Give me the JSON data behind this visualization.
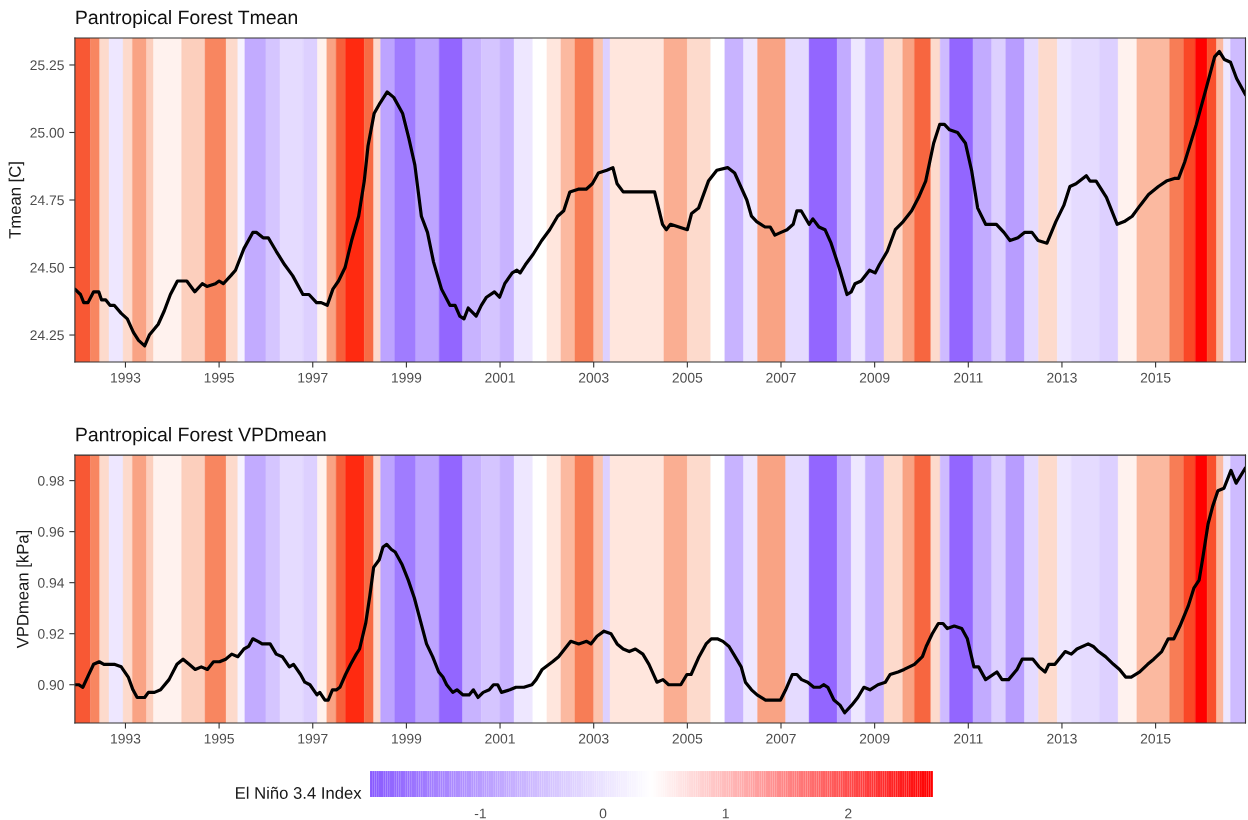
{
  "chart_data": [
    {
      "type": "line",
      "title": "Pantropical Forest Tmean",
      "ylabel": "Tmean [C]",
      "grid": false,
      "xlim": [
        1991.92,
        2016.92
      ],
      "xticks": [
        1993,
        1995,
        1997,
        1999,
        2001,
        2003,
        2005,
        2007,
        2009,
        2011,
        2013,
        2015
      ],
      "ylim": [
        24.15,
        25.35
      ],
      "yticks": [
        24.25,
        {
          "value": 24.5,
          "label": "24.50"
        },
        24.75,
        {
          "value": 25.0,
          "label": "25.00"
        },
        25.25
      ],
      "series": [
        {
          "color": "#000000",
          "x": [
            1991.92,
            1992.04,
            1992.11,
            1992.2,
            1992.32,
            1992.43,
            1992.49,
            1992.58,
            1992.67,
            1992.76,
            1992.91,
            1993.04,
            1993.17,
            1993.28,
            1993.41,
            1993.51,
            1993.7,
            1993.83,
            1993.96,
            1994.11,
            1994.31,
            1994.48,
            1994.64,
            1994.74,
            1994.92,
            1995.0,
            1995.09,
            1995.25,
            1995.35,
            1995.53,
            1995.72,
            1995.8,
            1995.94,
            1996.05,
            1996.22,
            1996.4,
            1996.57,
            1996.79,
            1996.92,
            1997.08,
            1997.18,
            1997.31,
            1997.43,
            1997.55,
            1997.69,
            1997.83,
            1997.98,
            1998.1,
            1998.18,
            1998.31,
            1998.44,
            1998.59,
            1998.73,
            1998.92,
            1999.05,
            1999.18,
            1999.32,
            1999.45,
            1999.58,
            1999.75,
            1999.93,
            2000.04,
            2000.14,
            2000.23,
            2000.32,
            2000.49,
            2000.6,
            2000.71,
            2000.88,
            2000.99,
            2001.1,
            2001.26,
            2001.36,
            2001.43,
            2001.54,
            2001.71,
            2001.89,
            2002.06,
            2002.23,
            2002.36,
            2002.49,
            2002.67,
            2002.84,
            2002.97,
            2003.1,
            2003.28,
            2003.41,
            2003.5,
            2003.63,
            2003.85,
            2004.0,
            2004.3,
            2004.47,
            2004.55,
            2004.64,
            2005.0,
            2005.09,
            2005.24,
            2005.45,
            2005.63,
            2005.86,
            2006.01,
            2006.14,
            2006.27,
            2006.37,
            2006.48,
            2006.66,
            2006.77,
            2006.87,
            2007.0,
            2007.13,
            2007.26,
            2007.34,
            2007.43,
            2007.6,
            2007.68,
            2007.81,
            2007.94,
            2008.07,
            2008.24,
            2008.41,
            2008.5,
            2008.58,
            2008.71,
            2008.89,
            2009.01,
            2009.1,
            2009.27,
            2009.44,
            2009.61,
            2009.79,
            2009.94,
            2010.09,
            2010.26,
            2010.39,
            2010.49,
            2010.6,
            2010.77,
            2010.94,
            2011.07,
            2011.2,
            2011.37,
            2011.6,
            2011.76,
            2011.89,
            2012.06,
            2012.2,
            2012.36,
            2012.49,
            2012.68,
            2012.87,
            2013.04,
            2013.17,
            2013.3,
            2013.52,
            2013.6,
            2013.73,
            2013.95,
            2014.18,
            2014.33,
            2014.5,
            2014.67,
            2014.85,
            2015.06,
            2015.23,
            2015.4,
            2015.49,
            2015.62,
            2015.87,
            2016.09,
            2016.26,
            2016.36,
            2016.47,
            2016.6,
            2016.73,
            2016.92
          ],
          "values": [
            24.42,
            24.4,
            24.37,
            24.37,
            24.41,
            24.41,
            24.38,
            24.38,
            24.36,
            24.36,
            24.33,
            24.31,
            24.26,
            24.23,
            24.21,
            24.25,
            24.29,
            24.34,
            24.4,
            24.45,
            24.45,
            24.41,
            24.44,
            24.43,
            24.44,
            24.45,
            24.44,
            24.47,
            24.49,
            24.57,
            24.63,
            24.63,
            24.61,
            24.61,
            24.56,
            24.51,
            24.47,
            24.4,
            24.4,
            24.37,
            24.37,
            24.36,
            24.42,
            24.45,
            24.5,
            24.6,
            24.69,
            24.82,
            24.95,
            25.07,
            25.11,
            25.15,
            25.13,
            25.07,
            24.98,
            24.88,
            24.69,
            24.63,
            24.52,
            24.42,
            24.36,
            24.36,
            24.32,
            24.31,
            24.35,
            24.32,
            24.36,
            24.39,
            24.41,
            24.39,
            24.44,
            24.48,
            24.49,
            24.48,
            24.51,
            24.55,
            24.6,
            24.64,
            24.69,
            24.71,
            24.78,
            24.79,
            24.79,
            24.81,
            24.85,
            24.86,
            24.87,
            24.81,
            24.78,
            24.78,
            24.78,
            24.78,
            24.66,
            24.64,
            24.66,
            24.64,
            24.7,
            24.72,
            24.82,
            24.86,
            24.87,
            24.85,
            24.8,
            24.75,
            24.69,
            24.67,
            24.65,
            24.65,
            24.62,
            24.63,
            24.64,
            24.66,
            24.71,
            24.71,
            24.66,
            24.68,
            24.65,
            24.64,
            24.59,
            24.5,
            24.4,
            24.41,
            24.44,
            24.45,
            24.49,
            24.48,
            24.51,
            24.56,
            24.64,
            24.67,
            24.71,
            24.76,
            24.82,
            24.96,
            25.03,
            25.03,
            25.01,
            25.0,
            24.96,
            24.86,
            24.72,
            24.66,
            24.66,
            24.63,
            24.6,
            24.61,
            24.63,
            24.63,
            24.6,
            24.59,
            24.67,
            24.73,
            24.8,
            24.81,
            24.84,
            24.82,
            24.82,
            24.76,
            24.66,
            24.67,
            24.69,
            24.73,
            24.77,
            24.8,
            24.82,
            24.83,
            24.83,
            24.89,
            25.03,
            25.17,
            25.28,
            25.3,
            25.27,
            25.26,
            25.2,
            25.14
          ]
        }
      ],
      "bands": [
        {
          "axis": "x",
          "from": 1991.92,
          "to": 1992.25,
          "color": "#f85834"
        },
        {
          "axis": "x",
          "from": 1992.25,
          "to": 1992.45,
          "color": "#f88660"
        },
        {
          "axis": "x",
          "from": 1992.45,
          "to": 1992.65,
          "color": "#fddacc"
        },
        {
          "axis": "x",
          "from": 1992.65,
          "to": 1992.95,
          "color": "#eee7ff"
        },
        {
          "axis": "x",
          "from": 1992.95,
          "to": 1993.15,
          "color": "#fddacc"
        },
        {
          "axis": "x",
          "from": 1993.15,
          "to": 1993.45,
          "color": "#f9a384"
        },
        {
          "axis": "x",
          "from": 1993.45,
          "to": 1993.6,
          "color": "#fccfbd"
        },
        {
          "axis": "x",
          "from": 1993.6,
          "to": 1994.2,
          "color": "#fff2ee"
        },
        {
          "axis": "x",
          "from": 1994.2,
          "to": 1994.7,
          "color": "#fccfbd"
        },
        {
          "axis": "x",
          "from": 1994.7,
          "to": 1995.15,
          "color": "#f88660"
        },
        {
          "axis": "x",
          "from": 1995.15,
          "to": 1995.4,
          "color": "#fddacc"
        },
        {
          "axis": "x",
          "from": 1995.4,
          "to": 1995.55,
          "color": "#f7f3ff"
        },
        {
          "axis": "x",
          "from": 1995.55,
          "to": 1996.0,
          "color": "#c2abff"
        },
        {
          "axis": "x",
          "from": 1996.0,
          "to": 1996.3,
          "color": "#d5c5ff"
        },
        {
          "axis": "x",
          "from": 1996.3,
          "to": 1996.8,
          "color": "#e5dbff"
        },
        {
          "axis": "x",
          "from": 1996.8,
          "to": 1997.1,
          "color": "#ddd0ff"
        },
        {
          "axis": "x",
          "from": 1997.1,
          "to": 1997.3,
          "color": "#fff2ee"
        },
        {
          "axis": "x",
          "from": 1997.3,
          "to": 1997.5,
          "color": "#f9a384"
        },
        {
          "axis": "x",
          "from": 1997.5,
          "to": 1997.7,
          "color": "#f75f3a"
        },
        {
          "axis": "x",
          "from": 1997.7,
          "to": 1998.1,
          "color": "#ff2a10"
        },
        {
          "axis": "x",
          "from": 1998.1,
          "to": 1998.3,
          "color": "#f76c44"
        },
        {
          "axis": "x",
          "from": 1998.3,
          "to": 1998.45,
          "color": "#fddacc"
        },
        {
          "axis": "x",
          "from": 1998.45,
          "to": 1998.75,
          "color": "#bda4ff"
        },
        {
          "axis": "x",
          "from": 1998.75,
          "to": 1999.2,
          "color": "#a07cff"
        },
        {
          "axis": "x",
          "from": 1999.2,
          "to": 1999.7,
          "color": "#bda4ff"
        },
        {
          "axis": "x",
          "from": 1999.7,
          "to": 2000.2,
          "color": "#9366ff"
        },
        {
          "axis": "x",
          "from": 2000.2,
          "to": 2000.6,
          "color": "#c8b3ff"
        },
        {
          "axis": "x",
          "from": 2000.6,
          "to": 2001.0,
          "color": "#d5c5ff"
        },
        {
          "axis": "x",
          "from": 2001.0,
          "to": 2001.3,
          "color": "#c8b3ff"
        },
        {
          "axis": "x",
          "from": 2001.3,
          "to": 2001.7,
          "color": "#eee7ff"
        },
        {
          "axis": "x",
          "from": 2001.7,
          "to": 2002.0,
          "color": "#ffffff"
        },
        {
          "axis": "x",
          "from": 2002.0,
          "to": 2002.3,
          "color": "#ffe6dd"
        },
        {
          "axis": "x",
          "from": 2002.3,
          "to": 2002.6,
          "color": "#fbb9a0"
        },
        {
          "axis": "x",
          "from": 2002.6,
          "to": 2003.0,
          "color": "#f77d56"
        },
        {
          "axis": "x",
          "from": 2003.0,
          "to": 2003.2,
          "color": "#fcc4ae"
        },
        {
          "axis": "x",
          "from": 2003.2,
          "to": 2003.35,
          "color": "#ddd0ff"
        },
        {
          "axis": "x",
          "from": 2003.35,
          "to": 2004.5,
          "color": "#ffe6dd"
        },
        {
          "axis": "x",
          "from": 2004.5,
          "to": 2005.0,
          "color": "#faae92"
        },
        {
          "axis": "x",
          "from": 2005.0,
          "to": 2005.5,
          "color": "#fddacc"
        },
        {
          "axis": "x",
          "from": 2005.5,
          "to": 2005.8,
          "color": "#ffffff"
        },
        {
          "axis": "x",
          "from": 2005.8,
          "to": 2006.2,
          "color": "#c8b3ff"
        },
        {
          "axis": "x",
          "from": 2006.2,
          "to": 2006.5,
          "color": "#eee7ff"
        },
        {
          "axis": "x",
          "from": 2006.5,
          "to": 2007.1,
          "color": "#f9a384"
        },
        {
          "axis": "x",
          "from": 2007.1,
          "to": 2007.6,
          "color": "#e5dbff"
        },
        {
          "axis": "x",
          "from": 2007.6,
          "to": 2008.2,
          "color": "#9366ff"
        },
        {
          "axis": "x",
          "from": 2008.2,
          "to": 2008.5,
          "color": "#c2abff"
        },
        {
          "axis": "x",
          "from": 2008.5,
          "to": 2008.8,
          "color": "#eee7ff"
        },
        {
          "axis": "x",
          "from": 2008.8,
          "to": 2009.2,
          "color": "#c8b3ff"
        },
        {
          "axis": "x",
          "from": 2009.2,
          "to": 2009.6,
          "color": "#fddacc"
        },
        {
          "axis": "x",
          "from": 2009.6,
          "to": 2009.85,
          "color": "#f9a384"
        },
        {
          "axis": "x",
          "from": 2009.85,
          "to": 2010.2,
          "color": "#f76640"
        },
        {
          "axis": "x",
          "from": 2010.2,
          "to": 2010.4,
          "color": "#fddacc"
        },
        {
          "axis": "x",
          "from": 2010.4,
          "to": 2010.6,
          "color": "#cebbff"
        },
        {
          "axis": "x",
          "from": 2010.6,
          "to": 2011.1,
          "color": "#9366ff"
        },
        {
          "axis": "x",
          "from": 2011.1,
          "to": 2011.5,
          "color": "#c2abff"
        },
        {
          "axis": "x",
          "from": 2011.5,
          "to": 2011.8,
          "color": "#ddd0ff"
        },
        {
          "axis": "x",
          "from": 2011.8,
          "to": 2012.2,
          "color": "#b89dff"
        },
        {
          "axis": "x",
          "from": 2012.2,
          "to": 2012.5,
          "color": "#e5dbff"
        },
        {
          "axis": "x",
          "from": 2012.5,
          "to": 2012.9,
          "color": "#fddacc"
        },
        {
          "axis": "x",
          "from": 2012.9,
          "to": 2013.2,
          "color": "#eee7ff"
        },
        {
          "axis": "x",
          "from": 2013.2,
          "to": 2013.8,
          "color": "#e5dbff"
        },
        {
          "axis": "x",
          "from": 2013.8,
          "to": 2014.2,
          "color": "#ddd0ff"
        },
        {
          "axis": "x",
          "from": 2014.2,
          "to": 2014.6,
          "color": "#fff2ee"
        },
        {
          "axis": "x",
          "from": 2014.6,
          "to": 2015.3,
          "color": "#fbb9a0"
        },
        {
          "axis": "x",
          "from": 2015.3,
          "to": 2015.6,
          "color": "#f77d56"
        },
        {
          "axis": "x",
          "from": 2015.6,
          "to": 2015.85,
          "color": "#fa4826"
        },
        {
          "axis": "x",
          "from": 2015.85,
          "to": 2016.1,
          "color": "#ff0000"
        },
        {
          "axis": "x",
          "from": 2016.1,
          "to": 2016.3,
          "color": "#f9502c"
        },
        {
          "axis": "x",
          "from": 2016.3,
          "to": 2016.45,
          "color": "#fbb9a0"
        },
        {
          "axis": "x",
          "from": 2016.45,
          "to": 2016.6,
          "color": "#eee7ff"
        },
        {
          "axis": "x",
          "from": 2016.6,
          "to": 2016.92,
          "color": "#cebbff"
        }
      ]
    },
    {
      "type": "line",
      "title": "Pantropical Forest VPDmean",
      "ylabel": "VPDmean [kPa]",
      "grid": false,
      "clabel": "El Niño 3.4 Index",
      "clim": [
        -1.9,
        2.69
      ],
      "cticks": [
        -1,
        0,
        1,
        2
      ],
      "xlim": [
        1991.92,
        2016.92
      ],
      "xticks": [
        1993,
        1995,
        1997,
        1999,
        2001,
        2003,
        2005,
        2007,
        2009,
        2011,
        2013,
        2015
      ],
      "ylim": [
        0.885,
        0.99
      ],
      "yticks": [
        {
          "value": 0.9,
          "label": "0.90"
        },
        {
          "value": 0.92,
          "label": "0.92"
        },
        {
          "value": 0.94,
          "label": "0.94"
        },
        {
          "value": 0.96,
          "label": "0.96"
        },
        {
          "value": 0.98,
          "label": "0.98"
        }
      ],
      "series": [
        {
          "color": "#000000",
          "x": [
            1991.93,
            1992.0,
            1992.09,
            1992.19,
            1992.32,
            1992.44,
            1992.54,
            1992.63,
            1992.76,
            1992.91,
            1993.06,
            1993.16,
            1993.25,
            1993.41,
            1993.49,
            1993.62,
            1993.75,
            1993.93,
            1994.1,
            1994.23,
            1994.36,
            1994.49,
            1994.62,
            1994.75,
            1994.88,
            1995.01,
            1995.14,
            1995.27,
            1995.4,
            1995.53,
            1995.63,
            1995.72,
            1995.83,
            1995.92,
            1996.09,
            1996.22,
            1996.35,
            1996.5,
            1996.59,
            1996.74,
            1996.83,
            1996.94,
            1997.09,
            1997.15,
            1997.26,
            1997.33,
            1997.42,
            1997.51,
            1997.58,
            1997.7,
            1997.81,
            1997.93,
            1998.0,
            1998.13,
            1998.22,
            1998.3,
            1998.42,
            1998.5,
            1998.58,
            1998.68,
            1998.76,
            1998.91,
            1999.04,
            1999.17,
            1999.3,
            1999.43,
            1999.56,
            1999.69,
            1999.78,
            1999.86,
            1999.99,
            2000.08,
            2000.21,
            2000.34,
            2000.43,
            2000.53,
            2000.64,
            2000.77,
            2000.86,
            2000.95,
            2001.03,
            2001.21,
            2001.34,
            2001.51,
            2001.68,
            2001.77,
            2001.9,
            2002.12,
            2002.25,
            2002.38,
            2002.51,
            2002.68,
            2002.85,
            2002.94,
            2003.07,
            2003.22,
            2003.37,
            2003.5,
            2003.63,
            2003.76,
            2003.89,
            2004.05,
            2004.18,
            2004.35,
            2004.48,
            2004.6,
            2004.73,
            2004.86,
            2004.99,
            2005.08,
            2005.25,
            2005.4,
            2005.51,
            2005.64,
            2005.76,
            2005.89,
            2006.02,
            2006.15,
            2006.24,
            2006.37,
            2006.49,
            2006.67,
            2006.84,
            2006.99,
            2007.1,
            2007.24,
            2007.34,
            2007.44,
            2007.57,
            2007.7,
            2007.83,
            2007.91,
            2008.0,
            2008.13,
            2008.26,
            2008.36,
            2008.51,
            2008.64,
            2008.77,
            2008.9,
            2009.07,
            2009.23,
            2009.33,
            2009.5,
            2009.63,
            2009.85,
            2010.02,
            2010.1,
            2010.23,
            2010.36,
            2010.46,
            2010.55,
            2010.7,
            2010.86,
            2010.98,
            2011.12,
            2011.22,
            2011.37,
            2011.61,
            2011.72,
            2011.86,
            2012.04,
            2012.15,
            2012.38,
            2012.51,
            2012.64,
            2012.72,
            2012.85,
            2013.07,
            2013.2,
            2013.32,
            2013.56,
            2013.67,
            2013.78,
            2013.93,
            2014.1,
            2014.23,
            2014.36,
            2014.48,
            2014.66,
            2014.83,
            2014.96,
            2015.13,
            2015.27,
            2015.39,
            2015.52,
            2015.7,
            2015.82,
            2015.93,
            2016.01,
            2016.12,
            2016.22,
            2016.33,
            2016.46,
            2016.61,
            2016.72,
            2016.92
          ],
          "values": [
            0.9,
            0.9,
            0.899,
            0.903,
            0.908,
            0.909,
            0.908,
            0.908,
            0.908,
            0.907,
            0.903,
            0.898,
            0.895,
            0.895,
            0.897,
            0.897,
            0.898,
            0.902,
            0.908,
            0.91,
            0.908,
            0.906,
            0.907,
            0.906,
            0.909,
            0.909,
            0.91,
            0.912,
            0.911,
            0.914,
            0.915,
            0.918,
            0.917,
            0.916,
            0.916,
            0.912,
            0.911,
            0.907,
            0.908,
            0.904,
            0.901,
            0.9,
            0.896,
            0.897,
            0.894,
            0.894,
            0.898,
            0.898,
            0.899,
            0.904,
            0.908,
            0.912,
            0.914,
            0.924,
            0.935,
            0.946,
            0.949,
            0.954,
            0.955,
            0.953,
            0.952,
            0.947,
            0.941,
            0.934,
            0.925,
            0.916,
            0.911,
            0.905,
            0.903,
            0.9,
            0.897,
            0.898,
            0.896,
            0.896,
            0.898,
            0.895,
            0.897,
            0.898,
            0.9,
            0.9,
            0.897,
            0.898,
            0.899,
            0.899,
            0.9,
            0.902,
            0.906,
            0.909,
            0.911,
            0.914,
            0.917,
            0.916,
            0.917,
            0.916,
            0.919,
            0.921,
            0.92,
            0.916,
            0.914,
            0.913,
            0.914,
            0.912,
            0.908,
            0.901,
            0.902,
            0.9,
            0.9,
            0.9,
            0.904,
            0.904,
            0.911,
            0.916,
            0.918,
            0.918,
            0.917,
            0.915,
            0.911,
            0.907,
            0.901,
            0.898,
            0.896,
            0.894,
            0.894,
            0.894,
            0.898,
            0.904,
            0.904,
            0.902,
            0.901,
            0.899,
            0.899,
            0.9,
            0.899,
            0.894,
            0.892,
            0.889,
            0.892,
            0.895,
            0.899,
            0.898,
            0.9,
            0.901,
            0.904,
            0.905,
            0.906,
            0.908,
            0.911,
            0.915,
            0.92,
            0.924,
            0.924,
            0.922,
            0.923,
            0.922,
            0.918,
            0.907,
            0.907,
            0.902,
            0.905,
            0.902,
            0.902,
            0.906,
            0.91,
            0.91,
            0.907,
            0.905,
            0.908,
            0.908,
            0.913,
            0.912,
            0.914,
            0.916,
            0.915,
            0.913,
            0.911,
            0.908,
            0.906,
            0.903,
            0.903,
            0.905,
            0.908,
            0.91,
            0.913,
            0.918,
            0.918,
            0.923,
            0.931,
            0.938,
            0.941,
            0.95,
            0.963,
            0.97,
            0.976,
            0.977,
            0.984,
            0.979,
            0.985
          ]
        }
      ],
      "bands": [
        {
          "axis": "x",
          "from": 1991.92,
          "to": 1992.25,
          "color": "#f85834"
        },
        {
          "axis": "x",
          "from": 1992.25,
          "to": 1992.45,
          "color": "#f88660"
        },
        {
          "axis": "x",
          "from": 1992.45,
          "to": 1992.65,
          "color": "#fddacc"
        },
        {
          "axis": "x",
          "from": 1992.65,
          "to": 1992.95,
          "color": "#eee7ff"
        },
        {
          "axis": "x",
          "from": 1992.95,
          "to": 1993.15,
          "color": "#fddacc"
        },
        {
          "axis": "x",
          "from": 1993.15,
          "to": 1993.45,
          "color": "#f9a384"
        },
        {
          "axis": "x",
          "from": 1993.45,
          "to": 1993.6,
          "color": "#fccfbd"
        },
        {
          "axis": "x",
          "from": 1993.6,
          "to": 1994.2,
          "color": "#fff2ee"
        },
        {
          "axis": "x",
          "from": 1994.2,
          "to": 1994.7,
          "color": "#fccfbd"
        },
        {
          "axis": "x",
          "from": 1994.7,
          "to": 1995.15,
          "color": "#f88660"
        },
        {
          "axis": "x",
          "from": 1995.15,
          "to": 1995.4,
          "color": "#fddacc"
        },
        {
          "axis": "x",
          "from": 1995.4,
          "to": 1995.55,
          "color": "#f7f3ff"
        },
        {
          "axis": "x",
          "from": 1995.55,
          "to": 1996.0,
          "color": "#c2abff"
        },
        {
          "axis": "x",
          "from": 1996.0,
          "to": 1996.3,
          "color": "#d5c5ff"
        },
        {
          "axis": "x",
          "from": 1996.3,
          "to": 1996.8,
          "color": "#e5dbff"
        },
        {
          "axis": "x",
          "from": 1996.8,
          "to": 1997.1,
          "color": "#ddd0ff"
        },
        {
          "axis": "x",
          "from": 1997.1,
          "to": 1997.3,
          "color": "#fff2ee"
        },
        {
          "axis": "x",
          "from": 1997.3,
          "to": 1997.5,
          "color": "#f9a384"
        },
        {
          "axis": "x",
          "from": 1997.5,
          "to": 1997.7,
          "color": "#f75f3a"
        },
        {
          "axis": "x",
          "from": 1997.7,
          "to": 1998.1,
          "color": "#ff2a10"
        },
        {
          "axis": "x",
          "from": 1998.1,
          "to": 1998.3,
          "color": "#f76c44"
        },
        {
          "axis": "x",
          "from": 1998.3,
          "to": 1998.45,
          "color": "#fddacc"
        },
        {
          "axis": "x",
          "from": 1998.45,
          "to": 1998.75,
          "color": "#bda4ff"
        },
        {
          "axis": "x",
          "from": 1998.75,
          "to": 1999.2,
          "color": "#a07cff"
        },
        {
          "axis": "x",
          "from": 1999.2,
          "to": 1999.7,
          "color": "#bda4ff"
        },
        {
          "axis": "x",
          "from": 1999.7,
          "to": 2000.2,
          "color": "#9366ff"
        },
        {
          "axis": "x",
          "from": 2000.2,
          "to": 2000.6,
          "color": "#c8b3ff"
        },
        {
          "axis": "x",
          "from": 2000.6,
          "to": 2001.0,
          "color": "#d5c5ff"
        },
        {
          "axis": "x",
          "from": 2001.0,
          "to": 2001.3,
          "color": "#c8b3ff"
        },
        {
          "axis": "x",
          "from": 2001.3,
          "to": 2001.7,
          "color": "#eee7ff"
        },
        {
          "axis": "x",
          "from": 2001.7,
          "to": 2002.0,
          "color": "#ffffff"
        },
        {
          "axis": "x",
          "from": 2002.0,
          "to": 2002.3,
          "color": "#ffe6dd"
        },
        {
          "axis": "x",
          "from": 2002.3,
          "to": 2002.6,
          "color": "#fbb9a0"
        },
        {
          "axis": "x",
          "from": 2002.6,
          "to": 2003.0,
          "color": "#f77d56"
        },
        {
          "axis": "x",
          "from": 2003.0,
          "to": 2003.2,
          "color": "#fcc4ae"
        },
        {
          "axis": "x",
          "from": 2003.2,
          "to": 2003.35,
          "color": "#ddd0ff"
        },
        {
          "axis": "x",
          "from": 2003.35,
          "to": 2004.5,
          "color": "#ffe6dd"
        },
        {
          "axis": "x",
          "from": 2004.5,
          "to": 2005.0,
          "color": "#faae92"
        },
        {
          "axis": "x",
          "from": 2005.0,
          "to": 2005.5,
          "color": "#fddacc"
        },
        {
          "axis": "x",
          "from": 2005.5,
          "to": 2005.8,
          "color": "#ffffff"
        },
        {
          "axis": "x",
          "from": 2005.8,
          "to": 2006.2,
          "color": "#c8b3ff"
        },
        {
          "axis": "x",
          "from": 2006.2,
          "to": 2006.5,
          "color": "#eee7ff"
        },
        {
          "axis": "x",
          "from": 2006.5,
          "to": 2007.1,
          "color": "#f9a384"
        },
        {
          "axis": "x",
          "from": 2007.1,
          "to": 2007.6,
          "color": "#e5dbff"
        },
        {
          "axis": "x",
          "from": 2007.6,
          "to": 2008.2,
          "color": "#9366ff"
        },
        {
          "axis": "x",
          "from": 2008.2,
          "to": 2008.5,
          "color": "#c2abff"
        },
        {
          "axis": "x",
          "from": 2008.5,
          "to": 2008.8,
          "color": "#eee7ff"
        },
        {
          "axis": "x",
          "from": 2008.8,
          "to": 2009.2,
          "color": "#c8b3ff"
        },
        {
          "axis": "x",
          "from": 2009.2,
          "to": 2009.6,
          "color": "#fddacc"
        },
        {
          "axis": "x",
          "from": 2009.6,
          "to": 2009.85,
          "color": "#f9a384"
        },
        {
          "axis": "x",
          "from": 2009.85,
          "to": 2010.2,
          "color": "#f76640"
        },
        {
          "axis": "x",
          "from": 2010.2,
          "to": 2010.4,
          "color": "#fddacc"
        },
        {
          "axis": "x",
          "from": 2010.4,
          "to": 2010.6,
          "color": "#cebbff"
        },
        {
          "axis": "x",
          "from": 2010.6,
          "to": 2011.1,
          "color": "#9366ff"
        },
        {
          "axis": "x",
          "from": 2011.1,
          "to": 2011.5,
          "color": "#c2abff"
        },
        {
          "axis": "x",
          "from": 2011.5,
          "to": 2011.8,
          "color": "#ddd0ff"
        },
        {
          "axis": "x",
          "from": 2011.8,
          "to": 2012.2,
          "color": "#b89dff"
        },
        {
          "axis": "x",
          "from": 2012.2,
          "to": 2012.5,
          "color": "#e5dbff"
        },
        {
          "axis": "x",
          "from": 2012.5,
          "to": 2012.9,
          "color": "#fddacc"
        },
        {
          "axis": "x",
          "from": 2012.9,
          "to": 2013.2,
          "color": "#eee7ff"
        },
        {
          "axis": "x",
          "from": 2013.2,
          "to": 2013.8,
          "color": "#e5dbff"
        },
        {
          "axis": "x",
          "from": 2013.8,
          "to": 2014.2,
          "color": "#ddd0ff"
        },
        {
          "axis": "x",
          "from": 2014.2,
          "to": 2014.6,
          "color": "#fff2ee"
        },
        {
          "axis": "x",
          "from": 2014.6,
          "to": 2015.3,
          "color": "#fbb9a0"
        },
        {
          "axis": "x",
          "from": 2015.3,
          "to": 2015.6,
          "color": "#f77d56"
        },
        {
          "axis": "x",
          "from": 2015.6,
          "to": 2015.85,
          "color": "#fa4826"
        },
        {
          "axis": "x",
          "from": 2015.85,
          "to": 2016.1,
          "color": "#ff0000"
        },
        {
          "axis": "x",
          "from": 2016.1,
          "to": 2016.3,
          "color": "#f9502c"
        },
        {
          "axis": "x",
          "from": 2016.3,
          "to": 2016.45,
          "color": "#fbb9a0"
        },
        {
          "axis": "x",
          "from": 2016.45,
          "to": 2016.6,
          "color": "#eee7ff"
        },
        {
          "axis": "x",
          "from": 2016.6,
          "to": 2016.92,
          "color": "#cebbff"
        }
      ]
    }
  ]
}
